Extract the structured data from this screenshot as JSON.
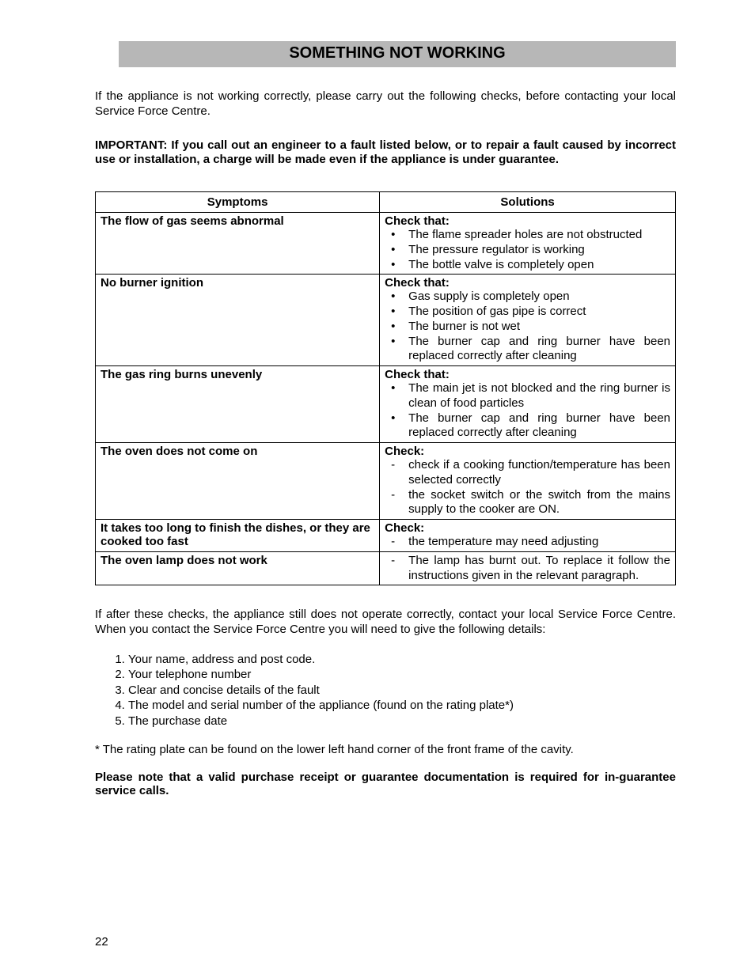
{
  "title": "SOMETHING NOT WORKING",
  "intro": "If the appliance is not working correctly, please carry out the following checks, before contacting your local Service Force Centre.",
  "important": "IMPORTANT: If you call out an engineer to a fault listed below, or to repair a fault caused by incorrect use or installation, a charge will be made even if the appliance is under guarantee.",
  "table": {
    "header": {
      "symptoms": "Symptoms",
      "solutions": "Solutions"
    },
    "rows": [
      {
        "symptom": "The flow of gas seems abnormal",
        "lead": "Check that:",
        "list_style": "bullets",
        "items": [
          "The flame spreader holes are not obstructed",
          "The pressure regulator is working",
          "The bottle valve is completely open"
        ]
      },
      {
        "symptom": "No burner ignition",
        "lead": "Check that:",
        "list_style": "bullets",
        "items": [
          "Gas supply is completely open",
          "The position of gas pipe is correct",
          "The burner is not wet",
          "The burner cap and ring burner have been replaced correctly after cleaning"
        ]
      },
      {
        "symptom": "The gas ring burns unevenly",
        "lead": "Check that:",
        "list_style": "bullets",
        "items": [
          "The main jet is not blocked and the ring burner is clean of food particles",
          "The burner cap and ring burner have been replaced correctly after cleaning"
        ]
      },
      {
        "symptom": "The oven does not come on",
        "lead": "Check:",
        "list_style": "dashes",
        "items": [
          "check if a cooking function/temperature has been selected correctly",
          "the socket switch or the switch from the mains supply to the cooker are ON."
        ]
      },
      {
        "symptom": "It takes too long to finish the dishes, or they are cooked too fast",
        "lead": "Check:",
        "list_style": "dashes",
        "items": [
          "the temperature may need adjusting"
        ]
      },
      {
        "symptom": "The oven lamp does not work",
        "lead": "",
        "list_style": "dashes",
        "items": [
          "The  lamp has burnt out. To replace it follow the instructions given in the relevant paragraph."
        ]
      }
    ]
  },
  "after_table": "If after these checks, the appliance still does not operate correctly, contact your local Service Force Centre. When you contact the Service Force Centre you will need  to give the following details:",
  "details": [
    "Your name, address and post code.",
    "Your telephone number",
    "Clear and concise details of the fault",
    "The model and serial number of the appliance (found on the rating plate*)",
    "The purchase date"
  ],
  "footnote": "* The rating plate can be found on the lower left hand corner of the front frame of the cavity.",
  "please_note": "Please note that a valid purchase receipt or guarantee documentation is required for in-guarantee service calls.",
  "page_number": "22"
}
